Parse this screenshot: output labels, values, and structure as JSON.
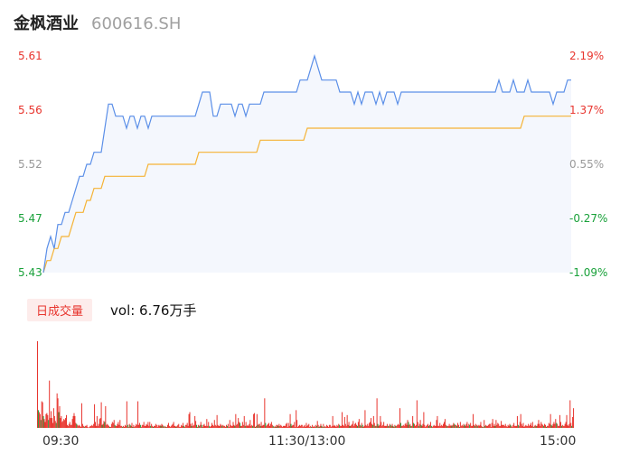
{
  "header": {
    "name": "金枫酒业",
    "code": "600616.SH"
  },
  "colors": {
    "price_line": "#5b8fe8",
    "avg_line": "#f5b335",
    "up": "#e8352e",
    "down": "#19a13a",
    "flat": "#999999",
    "fill": "#f4f7fd"
  },
  "volume": {
    "tab_label": "日成交量",
    "text": "vol: 6.76万手"
  },
  "chart_data": {
    "type": "line",
    "title": "",
    "y_left_ticks": [
      "5.61",
      "5.56",
      "5.52",
      "5.47",
      "5.43"
    ],
    "y_right_ticks": [
      "2.19%",
      "1.37%",
      "0.55%",
      "-0.27%",
      "-1.09%"
    ],
    "x_ticks": [
      "09:30",
      "11:30/13:00",
      "15:00"
    ],
    "ylim": [
      5.43,
      5.61
    ],
    "prev_close": 5.49,
    "series": [
      {
        "kind": "price",
        "values": [
          5.43,
          5.45,
          5.46,
          5.45,
          5.47,
          5.47,
          5.48,
          5.48,
          5.49,
          5.5,
          5.51,
          5.51,
          5.52,
          5.52,
          5.53,
          5.53,
          5.53,
          5.55,
          5.57,
          5.57,
          5.56,
          5.56,
          5.56,
          5.55,
          5.56,
          5.56,
          5.55,
          5.56,
          5.56,
          5.55,
          5.56,
          5.56,
          5.56,
          5.56,
          5.56,
          5.56,
          5.56,
          5.56,
          5.56,
          5.56,
          5.56,
          5.56,
          5.56,
          5.57,
          5.58,
          5.58,
          5.58,
          5.56,
          5.56,
          5.57,
          5.57,
          5.57,
          5.57,
          5.56,
          5.57,
          5.57,
          5.56,
          5.57,
          5.57,
          5.57,
          5.57,
          5.58,
          5.58,
          5.58,
          5.58,
          5.58,
          5.58,
          5.58,
          5.58,
          5.58,
          5.58,
          5.59,
          5.59,
          5.59,
          5.6,
          5.61,
          5.6,
          5.59,
          5.59,
          5.59,
          5.59,
          5.59,
          5.58,
          5.58,
          5.58,
          5.58,
          5.57,
          5.58,
          5.57,
          5.58,
          5.58,
          5.58,
          5.57,
          5.58,
          5.57,
          5.58,
          5.58,
          5.58,
          5.57,
          5.58,
          5.58,
          5.58,
          5.58,
          5.58,
          5.58,
          5.58,
          5.58,
          5.58,
          5.58,
          5.58,
          5.58,
          5.58,
          5.58,
          5.58,
          5.58,
          5.58,
          5.58,
          5.58,
          5.58,
          5.58,
          5.58,
          5.58,
          5.58,
          5.58,
          5.58,
          5.58,
          5.59,
          5.58,
          5.58,
          5.58,
          5.59,
          5.58,
          5.58,
          5.58,
          5.59,
          5.58,
          5.58,
          5.58,
          5.58,
          5.58,
          5.58,
          5.57,
          5.58,
          5.58,
          5.58,
          5.59,
          5.59
        ]
      },
      {
        "kind": "average",
        "values": [
          5.43,
          5.44,
          5.44,
          5.45,
          5.45,
          5.46,
          5.46,
          5.46,
          5.47,
          5.48,
          5.48,
          5.48,
          5.49,
          5.49,
          5.5,
          5.5,
          5.5,
          5.51,
          5.51,
          5.51,
          5.51,
          5.51,
          5.51,
          5.51,
          5.51,
          5.51,
          5.51,
          5.51,
          5.51,
          5.52,
          5.52,
          5.52,
          5.52,
          5.52,
          5.52,
          5.52,
          5.52,
          5.52,
          5.52,
          5.52,
          5.52,
          5.52,
          5.52,
          5.53,
          5.53,
          5.53,
          5.53,
          5.53,
          5.53,
          5.53,
          5.53,
          5.53,
          5.53,
          5.53,
          5.53,
          5.53,
          5.53,
          5.53,
          5.53,
          5.53,
          5.54,
          5.54,
          5.54,
          5.54,
          5.54,
          5.54,
          5.54,
          5.54,
          5.54,
          5.54,
          5.54,
          5.54,
          5.54,
          5.55,
          5.55,
          5.55,
          5.55,
          5.55,
          5.55,
          5.55,
          5.55,
          5.55,
          5.55,
          5.55,
          5.55,
          5.55,
          5.55,
          5.55,
          5.55,
          5.55,
          5.55,
          5.55,
          5.55,
          5.55,
          5.55,
          5.55,
          5.55,
          5.55,
          5.55,
          5.55,
          5.55,
          5.55,
          5.55,
          5.55,
          5.55,
          5.55,
          5.55,
          5.55,
          5.55,
          5.55,
          5.55,
          5.55,
          5.55,
          5.55,
          5.55,
          5.55,
          5.55,
          5.55,
          5.55,
          5.55,
          5.55,
          5.55,
          5.55,
          5.55,
          5.55,
          5.55,
          5.55,
          5.55,
          5.55,
          5.55,
          5.55,
          5.55,
          5.55,
          5.56,
          5.56,
          5.56,
          5.56,
          5.56,
          5.56,
          5.56,
          5.56,
          5.56,
          5.56,
          5.56,
          5.56,
          5.56,
          5.56
        ]
      }
    ],
    "volumes": [
      88,
      18,
      16,
      14,
      8,
      27,
      26,
      12,
      9,
      6,
      14,
      15,
      13,
      8,
      48,
      10,
      17,
      10,
      5,
      20,
      12,
      7,
      5,
      35,
      30,
      16,
      22,
      10,
      12,
      6,
      7,
      9,
      8,
      10,
      13,
      3,
      2,
      4,
      6,
      3,
      3,
      9,
      12,
      15,
      12,
      5,
      4,
      3,
      2,
      3,
      2,
      1,
      25,
      4,
      2,
      1,
      2,
      2,
      3,
      1,
      0,
      1,
      2,
      2,
      3,
      2,
      4,
      24,
      6,
      2,
      12,
      2,
      4,
      9,
      10,
      26,
      3,
      4,
      7,
      6,
      22,
      3,
      4,
      3,
      2,
      1,
      1,
      4,
      6,
      5,
      8,
      3,
      2,
      2,
      4,
      6,
      3,
      8,
      2,
      2,
      1,
      2,
      1,
      3,
      2,
      27,
      3,
      1,
      4,
      3,
      2,
      5,
      1,
      3,
      1,
      2,
      4,
      3,
      27,
      3,
      5,
      3,
      1,
      3,
      3,
      6,
      2,
      2,
      4,
      3,
      6,
      2,
      6,
      2,
      4,
      2,
      1,
      2,
      2,
      4,
      3,
      1,
      3,
      2,
      3,
      2,
      4,
      3,
      2,
      1,
      2,
      1,
      1,
      3,
      5,
      2,
      1,
      2,
      3,
      4,
      6,
      2,
      2,
      1,
      2,
      3,
      4,
      1,
      1,
      3,
      2,
      5,
      2,
      1,
      3,
      3,
      5,
      2,
      14,
      16,
      4,
      2,
      5,
      2,
      3,
      12,
      7,
      3,
      1,
      3,
      2,
      3,
      6,
      3,
      1,
      3,
      4,
      2,
      2,
      9,
      2,
      6,
      2,
      1,
      2,
      5,
      3,
      2,
      8,
      3,
      2,
      13,
      3,
      2,
      2,
      4,
      3,
      2,
      3,
      2,
      2,
      1,
      3,
      2,
      4,
      1,
      8,
      3,
      2,
      2,
      6,
      3,
      2,
      14,
      3,
      4,
      10,
      6,
      5,
      2,
      2,
      6,
      3,
      12,
      2,
      6,
      2,
      3,
      2,
      4,
      8,
      2,
      3,
      2,
      14,
      15,
      1,
      2,
      14,
      3,
      4,
      4,
      2,
      6,
      2,
      3,
      3,
      30,
      5,
      2,
      3,
      4,
      5,
      2,
      4,
      6,
      3,
      2,
      1,
      2,
      1,
      3,
      3,
      2,
      4,
      2,
      3,
      2,
      1,
      2,
      2,
      2,
      4,
      5,
      1,
      5,
      2,
      14,
      4,
      2,
      3,
      3,
      6,
      1,
      18,
      8,
      1,
      2,
      3,
      2,
      3,
      3,
      1,
      2,
      3,
      1,
      5,
      2,
      3,
      4,
      1,
      2,
      1,
      3,
      1,
      2,
      1,
      3,
      2,
      7,
      3,
      1,
      2,
      4,
      2,
      1,
      4,
      1,
      2,
      1,
      3,
      2,
      1,
      3,
      3,
      1,
      2,
      12,
      2,
      3,
      2,
      1,
      3,
      2,
      4,
      3,
      2,
      2,
      16,
      3,
      2,
      11,
      4,
      2,
      13,
      3,
      6,
      2,
      2,
      3,
      4,
      7,
      2,
      4,
      5,
      3,
      2,
      6,
      9,
      3,
      2,
      5,
      3,
      1,
      2,
      18,
      3,
      2,
      4,
      2,
      5,
      6,
      10,
      4,
      3,
      12,
      5,
      2,
      2,
      30,
      4,
      2,
      3,
      12,
      6,
      2,
      3,
      6,
      2,
      2,
      2,
      4,
      2,
      2,
      4,
      3,
      2,
      4,
      2,
      1,
      3,
      2,
      2,
      3,
      4,
      3,
      20,
      5,
      2,
      2,
      3,
      2,
      4,
      5,
      3,
      8,
      6,
      3,
      4,
      2,
      2,
      12,
      5,
      4,
      2,
      3,
      28,
      6,
      2,
      4,
      8,
      3,
      2,
      4,
      16,
      3,
      1,
      2,
      3,
      4,
      2,
      3,
      6,
      2,
      1,
      2,
      3,
      2,
      2,
      8,
      12,
      2,
      2,
      5,
      2,
      3,
      2,
      4,
      6,
      9,
      3,
      2,
      2,
      2,
      4,
      2,
      3,
      2,
      3,
      5,
      4,
      3,
      3,
      2,
      5,
      3,
      1,
      6,
      2,
      3,
      2,
      4,
      3,
      2,
      4,
      6,
      2,
      4,
      3,
      5,
      2,
      2,
      14,
      3,
      2,
      4,
      3,
      2,
      3,
      2,
      3,
      6,
      2,
      1,
      1,
      8,
      2,
      3,
      2,
      2,
      3,
      4,
      4,
      1,
      5,
      9,
      2,
      4,
      2,
      8,
      3,
      5,
      4,
      2,
      2,
      7,
      3,
      3,
      3,
      2,
      4,
      2,
      1,
      3,
      2,
      4,
      3,
      2,
      1,
      3,
      5,
      2,
      2,
      2,
      12,
      3,
      2,
      6,
      14,
      4,
      2,
      5,
      1,
      2,
      3,
      2,
      2,
      4,
      2,
      3,
      5,
      2,
      6,
      1,
      2,
      3,
      2,
      2,
      4,
      8,
      4,
      2,
      6,
      4,
      3,
      2,
      4,
      3,
      1,
      2,
      2,
      5,
      4,
      14,
      3,
      2,
      4,
      6,
      4,
      9,
      5,
      4,
      2,
      2,
      13,
      6,
      2,
      3,
      2,
      2,
      4,
      6,
      13,
      3,
      2,
      4,
      28,
      5,
      2,
      11,
      20
    ]
  }
}
